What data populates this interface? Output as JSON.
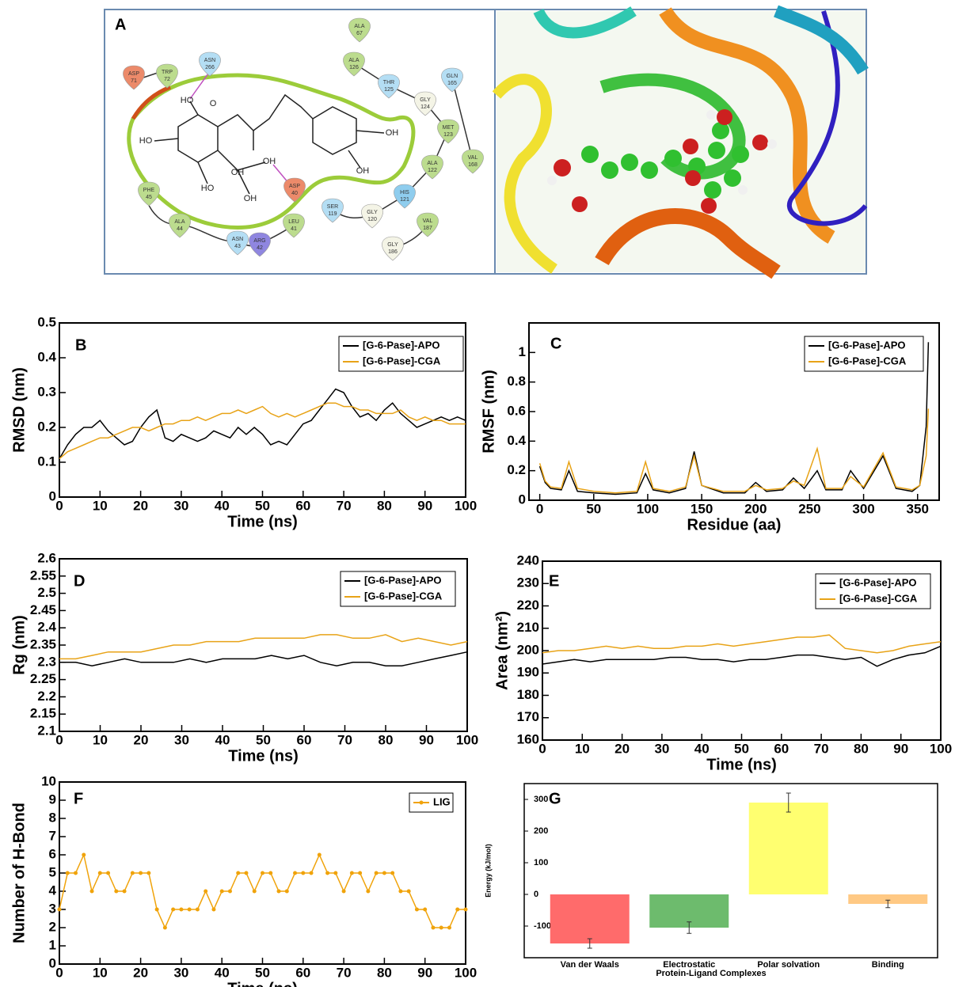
{
  "panel_a": {
    "label": "A",
    "residues": [
      {
        "name": "TRP",
        "number": 72
      },
      {
        "name": "ASP",
        "number": 71
      },
      {
        "name": "ASN",
        "number": 266
      },
      {
        "name": "ALA",
        "number": 67
      },
      {
        "name": "ALA",
        "number": 126
      },
      {
        "name": "THR",
        "number": 125
      },
      {
        "name": "GLN",
        "number": 165
      },
      {
        "name": "GLY",
        "number": 124
      },
      {
        "name": "MET",
        "number": 123
      },
      {
        "name": "VAL",
        "number": 168
      },
      {
        "name": "ALA",
        "number": 122
      },
      {
        "name": "HIS",
        "number": 121
      },
      {
        "name": "GLY",
        "number": 120
      },
      {
        "name": "SER",
        "number": 119
      },
      {
        "name": "VAL",
        "number": 187
      },
      {
        "name": "GLY",
        "number": 186
      },
      {
        "name": "ASP",
        "number": 40
      },
      {
        "name": "LEU",
        "number": 41
      },
      {
        "name": "ARG",
        "number": 42
      },
      {
        "name": "ASN",
        "number": 43
      },
      {
        "name": "ALA",
        "number": 44
      },
      {
        "name": "PHE",
        "number": 45
      }
    ],
    "atom_labels": [
      "HO",
      "O",
      "HO",
      "OH",
      "OH",
      "OH",
      "HO",
      "OH",
      "OH"
    ]
  },
  "chart_data": [
    {
      "type": "line",
      "label": "B",
      "xlabel": "Time (ns)",
      "ylabel": "RMSD (nm)",
      "x": [
        0,
        2,
        4,
        6,
        8,
        10,
        12,
        14,
        16,
        18,
        20,
        22,
        24,
        26,
        28,
        30,
        32,
        34,
        36,
        38,
        40,
        42,
        44,
        46,
        48,
        50,
        52,
        54,
        56,
        58,
        60,
        62,
        64,
        66,
        68,
        70,
        72,
        74,
        76,
        78,
        80,
        82,
        84,
        86,
        88,
        90,
        92,
        94,
        96,
        98,
        100
      ],
      "series": [
        {
          "name": "[G-6-Pase]-APO",
          "color": "#000000",
          "values": [
            0.11,
            0.15,
            0.18,
            0.2,
            0.2,
            0.22,
            0.19,
            0.17,
            0.15,
            0.16,
            0.2,
            0.23,
            0.25,
            0.17,
            0.16,
            0.18,
            0.17,
            0.16,
            0.17,
            0.19,
            0.18,
            0.17,
            0.2,
            0.18,
            0.2,
            0.18,
            0.15,
            0.16,
            0.15,
            0.18,
            0.21,
            0.22,
            0.25,
            0.28,
            0.31,
            0.3,
            0.26,
            0.23,
            0.24,
            0.22,
            0.25,
            0.27,
            0.24,
            0.22,
            0.2,
            0.21,
            0.22,
            0.23,
            0.22,
            0.23,
            0.22
          ]
        },
        {
          "name": "[G-6-Pase]-CGA",
          "color": "#e8a317",
          "values": [
            0.11,
            0.13,
            0.14,
            0.15,
            0.16,
            0.17,
            0.17,
            0.18,
            0.19,
            0.2,
            0.2,
            0.19,
            0.2,
            0.21,
            0.21,
            0.22,
            0.22,
            0.23,
            0.22,
            0.23,
            0.24,
            0.24,
            0.25,
            0.24,
            0.25,
            0.26,
            0.24,
            0.23,
            0.24,
            0.23,
            0.24,
            0.25,
            0.26,
            0.27,
            0.27,
            0.26,
            0.26,
            0.25,
            0.25,
            0.24,
            0.24,
            0.24,
            0.25,
            0.23,
            0.22,
            0.23,
            0.22,
            0.22,
            0.21,
            0.21,
            0.21
          ]
        }
      ],
      "xlim": [
        0,
        100
      ],
      "xticks": [
        0,
        10,
        20,
        30,
        40,
        50,
        60,
        70,
        80,
        90,
        100
      ],
      "ylim": [
        0,
        0.5
      ],
      "yticks": [
        0,
        0.1,
        0.2,
        0.3,
        0.4,
        0.5
      ],
      "legend": "top-right"
    },
    {
      "type": "line",
      "label": "C",
      "xlabel": "Residue (aa)",
      "ylabel": "RMSF (nm)",
      "x": [
        0,
        5,
        10,
        20,
        27,
        35,
        50,
        70,
        90,
        98,
        105,
        120,
        135,
        143,
        150,
        170,
        190,
        200,
        210,
        225,
        235,
        245,
        257,
        265,
        280,
        288,
        300,
        318,
        330,
        345,
        352,
        358,
        360
      ],
      "series": [
        {
          "name": "[G-6-Pase]-APO",
          "color": "#000000",
          "values": [
            0.23,
            0.12,
            0.08,
            0.07,
            0.2,
            0.06,
            0.05,
            0.04,
            0.05,
            0.18,
            0.07,
            0.05,
            0.08,
            0.33,
            0.1,
            0.05,
            0.05,
            0.12,
            0.06,
            0.07,
            0.15,
            0.08,
            0.2,
            0.07,
            0.07,
            0.2,
            0.08,
            0.3,
            0.08,
            0.06,
            0.1,
            0.5,
            1.07
          ]
        },
        {
          "name": "[G-6-Pase]-CGA",
          "color": "#e8a317",
          "values": [
            0.25,
            0.13,
            0.09,
            0.08,
            0.26,
            0.08,
            0.06,
            0.05,
            0.06,
            0.26,
            0.08,
            0.06,
            0.09,
            0.3,
            0.1,
            0.06,
            0.06,
            0.1,
            0.07,
            0.08,
            0.13,
            0.1,
            0.35,
            0.08,
            0.08,
            0.16,
            0.09,
            0.32,
            0.09,
            0.07,
            0.1,
            0.3,
            0.62
          ]
        }
      ],
      "xlim": [
        -10,
        370
      ],
      "xticks": [
        0,
        50,
        100,
        150,
        200,
        250,
        300,
        350
      ],
      "ylim": [
        0,
        1.2
      ],
      "yticks": [
        0,
        0.2,
        0.4,
        0.6,
        0.8,
        1
      ],
      "legend": "top-right"
    },
    {
      "type": "line",
      "label": "D",
      "xlabel": "Time (ns)",
      "ylabel": "Rg (nm)",
      "x": [
        0,
        4,
        8,
        12,
        16,
        20,
        24,
        28,
        32,
        36,
        40,
        44,
        48,
        52,
        56,
        60,
        64,
        68,
        72,
        76,
        80,
        84,
        88,
        92,
        96,
        100
      ],
      "series": [
        {
          "name": "[G-6-Pase]-APO",
          "color": "#000000",
          "values": [
            2.3,
            2.3,
            2.29,
            2.3,
            2.31,
            2.3,
            2.3,
            2.3,
            2.31,
            2.3,
            2.31,
            2.31,
            2.31,
            2.32,
            2.31,
            2.32,
            2.3,
            2.29,
            2.3,
            2.3,
            2.29,
            2.29,
            2.3,
            2.31,
            2.32,
            2.33
          ]
        },
        {
          "name": "[G-6-Pase]-CGA",
          "color": "#e8a317",
          "values": [
            2.31,
            2.31,
            2.32,
            2.33,
            2.33,
            2.33,
            2.34,
            2.35,
            2.35,
            2.36,
            2.36,
            2.36,
            2.37,
            2.37,
            2.37,
            2.37,
            2.38,
            2.38,
            2.37,
            2.37,
            2.38,
            2.36,
            2.37,
            2.36,
            2.35,
            2.36
          ]
        }
      ],
      "xlim": [
        0,
        100
      ],
      "xticks": [
        0,
        10,
        20,
        30,
        40,
        50,
        60,
        70,
        80,
        90,
        100
      ],
      "ylim": [
        2.1,
        2.6
      ],
      "yticks": [
        2.1,
        2.15,
        2.2,
        2.25,
        2.3,
        2.35,
        2.4,
        2.45,
        2.5,
        2.55,
        2.6
      ],
      "legend": "top-right"
    },
    {
      "type": "line",
      "label": "E",
      "xlabel": "Time (ns)",
      "ylabel": "Area (nm²)",
      "x": [
        0,
        4,
        8,
        12,
        16,
        20,
        24,
        28,
        32,
        36,
        40,
        44,
        48,
        52,
        56,
        60,
        64,
        68,
        72,
        76,
        80,
        84,
        88,
        92,
        96,
        100
      ],
      "series": [
        {
          "name": "[G-6-Pase]-APO",
          "color": "#000000",
          "values": [
            194,
            195,
            196,
            195,
            196,
            196,
            196,
            196,
            197,
            197,
            196,
            196,
            195,
            196,
            196,
            197,
            198,
            198,
            197,
            196,
            197,
            193,
            196,
            198,
            199,
            202
          ]
        },
        {
          "name": "[G-6-Pase]-CGA",
          "color": "#e8a317",
          "values": [
            199,
            200,
            200,
            201,
            202,
            201,
            202,
            201,
            201,
            202,
            202,
            203,
            202,
            203,
            204,
            205,
            206,
            206,
            207,
            201,
            200,
            199,
            200,
            202,
            203,
            204
          ]
        }
      ],
      "xlim": [
        0,
        100
      ],
      "xticks": [
        0,
        10,
        20,
        30,
        40,
        50,
        60,
        70,
        80,
        90,
        100
      ],
      "ylim": [
        160,
        240
      ],
      "yticks": [
        160,
        170,
        180,
        190,
        200,
        210,
        220,
        230,
        240
      ],
      "legend": "top-right"
    },
    {
      "type": "line",
      "label": "F",
      "xlabel": "Time (ns)",
      "ylabel": "Number of H-Bond",
      "markers": true,
      "x": [
        0,
        2,
        4,
        6,
        8,
        10,
        12,
        14,
        16,
        18,
        20,
        22,
        24,
        26,
        28,
        30,
        32,
        34,
        36,
        38,
        40,
        42,
        44,
        46,
        48,
        50,
        52,
        54,
        56,
        58,
        60,
        62,
        64,
        66,
        68,
        70,
        72,
        74,
        76,
        78,
        80,
        82,
        84,
        86,
        88,
        90,
        92,
        94,
        96,
        98,
        100
      ],
      "series": [
        {
          "name": "LIG",
          "color": "#f0a30a",
          "values": [
            3,
            5,
            5,
            6,
            4,
            5,
            5,
            4,
            4,
            5,
            5,
            5,
            3,
            2,
            3,
            3,
            3,
            3,
            4,
            3,
            4,
            4,
            5,
            5,
            4,
            5,
            5,
            4,
            4,
            5,
            5,
            5,
            6,
            5,
            5,
            4,
            5,
            5,
            4,
            5,
            5,
            5,
            4,
            4,
            3,
            3,
            2,
            2,
            2,
            3,
            3
          ]
        }
      ],
      "xlim": [
        0,
        100
      ],
      "xticks": [
        0,
        10,
        20,
        30,
        40,
        50,
        60,
        70,
        80,
        90,
        100
      ],
      "ylim": [
        0,
        10
      ],
      "yticks": [
        0,
        1,
        2,
        3,
        4,
        5,
        6,
        7,
        8,
        9,
        10
      ],
      "legend": "top-right"
    },
    {
      "type": "bar",
      "label": "G",
      "xlabel": "Protein-Ligand Complexes",
      "ylabel": "Energy (kJ/mol)",
      "categories": [
        "Van der Waals",
        "Electrostatic",
        "Polar solvation",
        "Binding"
      ],
      "values": [
        -155,
        -105,
        290,
        -30
      ],
      "errors": [
        15,
        18,
        30,
        12
      ],
      "colors": [
        "#ff6b6b",
        "#6dbb6d",
        "#ffff70",
        "#ffc984"
      ],
      "ylim": [
        -200,
        350
      ],
      "yticks": [
        -100,
        0,
        100,
        200,
        300
      ]
    }
  ]
}
